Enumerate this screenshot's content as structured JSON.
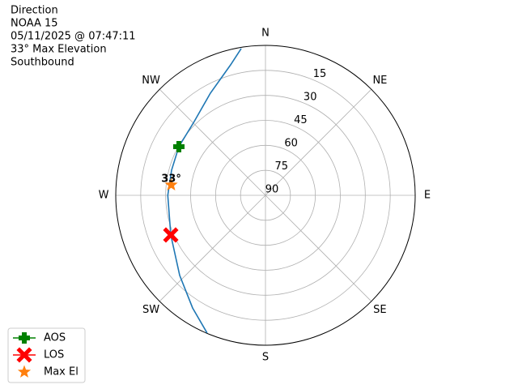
{
  "chart_data": {
    "type": "polar",
    "title_lines": [
      "Direction",
      "NOAA 15",
      "05/11/2025 @ 07:47:11",
      "33° Max Elevation",
      "Southbound"
    ],
    "rlim": [
      90,
      0
    ],
    "rticks": [
      15,
      30,
      45,
      60,
      75,
      90
    ],
    "angle_ticks": [
      {
        "value": 0,
        "label": "N"
      },
      {
        "value": 45,
        "label": "NE"
      },
      {
        "value": 90,
        "label": "E"
      },
      {
        "value": 135,
        "label": "SE"
      },
      {
        "value": 180,
        "label": "S"
      },
      {
        "value": 225,
        "label": "SW"
      },
      {
        "value": 270,
        "label": "W"
      },
      {
        "value": 315,
        "label": "NW"
      }
    ],
    "grid": true,
    "track": {
      "color": "#1f77b4",
      "azimuth": [
        350.6,
        345.0,
        331.6,
        316.0,
        299.3,
        285.0,
        270.0,
        247.3,
        227.0,
        212.9,
        203.0
      ],
      "elevation": [
        0.7,
        8.9,
        20.3,
        28.4,
        30.3,
        31.6,
        31.3,
        28.3,
        19.5,
        9.4,
        0.2
      ]
    },
    "series": [
      {
        "name": "AOS",
        "color": "#008000",
        "marker": "plus",
        "azimuth": [
          299.3
        ],
        "elevation": [
          30.3
        ]
      },
      {
        "name": "LOS",
        "color": "#ff0000",
        "marker": "x",
        "azimuth": [
          247.3
        ],
        "elevation": [
          28.3
        ]
      },
      {
        "name": "Max El",
        "color": "#ff7f0e",
        "marker": "star",
        "azimuth": [
          276.3
        ],
        "elevation": [
          33
        ]
      }
    ],
    "annotation": {
      "text": "33°",
      "azimuth": 276.3,
      "elevation": 33
    },
    "legend": "lower left"
  }
}
